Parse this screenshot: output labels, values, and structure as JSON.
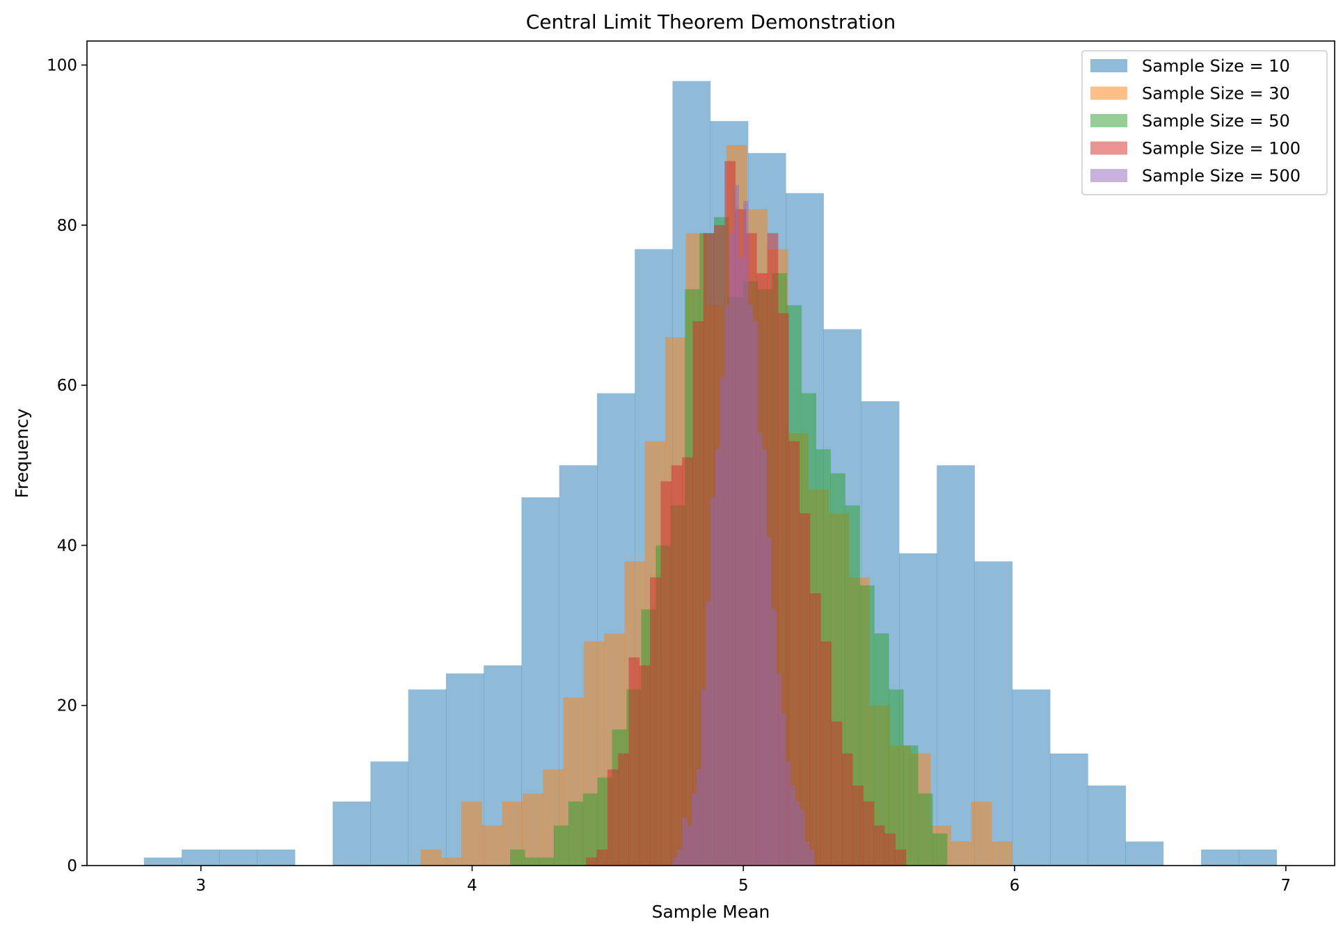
{
  "chart_data": {
    "type": "bar",
    "title": "Central Limit Theorem Demonstration",
    "xlabel": "Sample Mean",
    "ylabel": "Frequency",
    "xlim": [
      2.58,
      7.18
    ],
    "ylim": [
      0,
      103
    ],
    "xticks": [
      3,
      4,
      5,
      6,
      7
    ],
    "yticks": [
      0,
      20,
      40,
      60,
      80,
      100
    ],
    "legend_position": "top-right",
    "series": [
      {
        "name": "Sample Size = 10",
        "color": "#1f77b4",
        "bin_start": 2.79,
        "bin_width": 0.1392,
        "values": [
          1,
          2,
          2,
          2,
          0,
          8,
          13,
          22,
          24,
          25,
          46,
          50,
          59,
          77,
          98,
          93,
          89,
          84,
          67,
          58,
          39,
          50,
          38,
          22,
          14,
          10,
          3,
          0,
          2,
          2
        ]
      },
      {
        "name": "Sample Size = 30",
        "color": "#ff7f0e",
        "bin_start": 3.81,
        "bin_width": 0.0752,
        "values": [
          2,
          1,
          8,
          5,
          8,
          9,
          12,
          21,
          28,
          29,
          38,
          53,
          66,
          79,
          70,
          90,
          82,
          77,
          54,
          47,
          44,
          36,
          20,
          15,
          14,
          5,
          3,
          8,
          3,
          0
        ]
      },
      {
        "name": "Sample Size = 50",
        "color": "#2ca02c",
        "bin_start": 4.14,
        "bin_width": 0.0537,
        "values": [
          2,
          1,
          1,
          5,
          8,
          9,
          11,
          17,
          22,
          32,
          40,
          45,
          72,
          79,
          81,
          71,
          73,
          72,
          74,
          70,
          59,
          52,
          49,
          45,
          35,
          29,
          22,
          15,
          9,
          4
        ]
      },
      {
        "name": "Sample Size = 100",
        "color": "#d62728",
        "bin_start": 4.42,
        "bin_width": 0.0393,
        "values": [
          1,
          2,
          12,
          14,
          26,
          25,
          36,
          48,
          50,
          51,
          68,
          79,
          80,
          88,
          82,
          79,
          74,
          79,
          69,
          53,
          44,
          34,
          28,
          18,
          14,
          10,
          8,
          5,
          4,
          2
        ]
      },
      {
        "name": "Sample Size = 500",
        "color": "#9467bd",
        "bin_start": 4.74,
        "bin_width": 0.01733,
        "values": [
          1,
          2,
          6,
          5,
          9,
          12,
          22,
          33,
          46,
          52,
          61,
          70,
          79,
          85,
          76,
          83,
          70,
          68,
          54,
          52,
          41,
          32,
          24,
          19,
          13,
          10,
          8,
          7,
          3,
          2
        ]
      }
    ]
  }
}
